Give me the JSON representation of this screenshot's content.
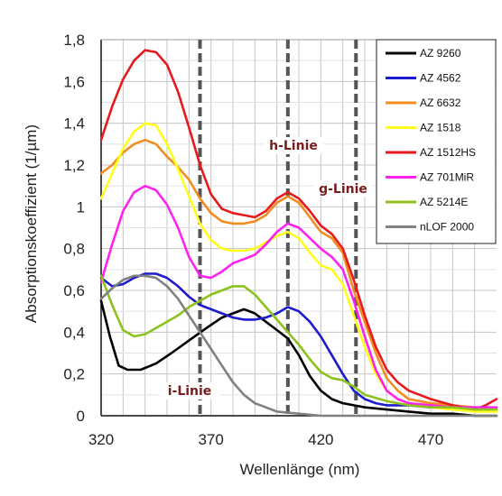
{
  "chart_data": {
    "type": "line",
    "xlabel": "Wellenlänge (nm)",
    "ylabel": "Absorptionskoeffizient (1/µm)",
    "xlim": [
      320,
      500
    ],
    "ylim": [
      0,
      1.8
    ],
    "x_ticks": [
      320,
      370,
      420,
      470
    ],
    "y_ticks": [
      "0",
      "0,2",
      "0,4",
      "0,6",
      "0,8",
      "1",
      "1,2",
      "1,4",
      "1,6",
      "1,8"
    ],
    "grid": true,
    "legend_position": "top-right",
    "series": [
      {
        "name": "AZ 9260",
        "color": "#000000",
        "points": [
          [
            320,
            0.55
          ],
          [
            324,
            0.38
          ],
          [
            328,
            0.24
          ],
          [
            332,
            0.22
          ],
          [
            338,
            0.22
          ],
          [
            345,
            0.25
          ],
          [
            352,
            0.3
          ],
          [
            360,
            0.36
          ],
          [
            368,
            0.42
          ],
          [
            375,
            0.47
          ],
          [
            380,
            0.49
          ],
          [
            385,
            0.51
          ],
          [
            390,
            0.49
          ],
          [
            395,
            0.45
          ],
          [
            400,
            0.41
          ],
          [
            405,
            0.37
          ],
          [
            410,
            0.29
          ],
          [
            415,
            0.19
          ],
          [
            420,
            0.12
          ],
          [
            425,
            0.08
          ],
          [
            430,
            0.06
          ],
          [
            435,
            0.05
          ],
          [
            440,
            0.04
          ],
          [
            450,
            0.03
          ],
          [
            460,
            0.02
          ],
          [
            470,
            0.01
          ],
          [
            480,
            0.01
          ],
          [
            490,
            0.0
          ],
          [
            500,
            0.0
          ]
        ]
      },
      {
        "name": "AZ 4562",
        "color": "#1c1ccc",
        "points": [
          [
            320,
            0.66
          ],
          [
            325,
            0.62
          ],
          [
            330,
            0.63
          ],
          [
            335,
            0.66
          ],
          [
            340,
            0.68
          ],
          [
            345,
            0.68
          ],
          [
            350,
            0.66
          ],
          [
            355,
            0.62
          ],
          [
            360,
            0.57
          ],
          [
            365,
            0.53
          ],
          [
            370,
            0.51
          ],
          [
            375,
            0.49
          ],
          [
            380,
            0.47
          ],
          [
            385,
            0.46
          ],
          [
            390,
            0.46
          ],
          [
            395,
            0.47
          ],
          [
            400,
            0.49
          ],
          [
            405,
            0.52
          ],
          [
            410,
            0.5
          ],
          [
            415,
            0.45
          ],
          [
            420,
            0.38
          ],
          [
            425,
            0.29
          ],
          [
            430,
            0.2
          ],
          [
            435,
            0.12
          ],
          [
            440,
            0.08
          ],
          [
            445,
            0.06
          ],
          [
            450,
            0.05
          ],
          [
            460,
            0.05
          ],
          [
            470,
            0.04
          ],
          [
            480,
            0.04
          ],
          [
            490,
            0.03
          ],
          [
            500,
            0.03
          ]
        ]
      },
      {
        "name": "AZ 6632",
        "color": "#f28c1e",
        "points": [
          [
            320,
            1.16
          ],
          [
            325,
            1.2
          ],
          [
            330,
            1.26
          ],
          [
            335,
            1.3
          ],
          [
            340,
            1.32
          ],
          [
            345,
            1.3
          ],
          [
            350,
            1.24
          ],
          [
            355,
            1.19
          ],
          [
            360,
            1.13
          ],
          [
            365,
            1.04
          ],
          [
            370,
            0.97
          ],
          [
            375,
            0.93
          ],
          [
            380,
            0.92
          ],
          [
            385,
            0.92
          ],
          [
            390,
            0.93
          ],
          [
            395,
            0.96
          ],
          [
            400,
            1.02
          ],
          [
            405,
            1.05
          ],
          [
            410,
            1.02
          ],
          [
            415,
            0.95
          ],
          [
            420,
            0.88
          ],
          [
            425,
            0.85
          ],
          [
            430,
            0.78
          ],
          [
            435,
            0.6
          ],
          [
            440,
            0.45
          ],
          [
            445,
            0.3
          ],
          [
            450,
            0.18
          ],
          [
            455,
            0.12
          ],
          [
            460,
            0.08
          ],
          [
            465,
            0.07
          ],
          [
            470,
            0.06
          ],
          [
            480,
            0.05
          ],
          [
            490,
            0.04
          ],
          [
            500,
            0.03
          ]
        ]
      },
      {
        "name": "AZ 1518",
        "color": "#ffff1a",
        "points": [
          [
            320,
            1.04
          ],
          [
            325,
            1.16
          ],
          [
            330,
            1.28
          ],
          [
            335,
            1.36
          ],
          [
            340,
            1.4
          ],
          [
            345,
            1.39
          ],
          [
            350,
            1.3
          ],
          [
            355,
            1.18
          ],
          [
            360,
            1.05
          ],
          [
            365,
            0.92
          ],
          [
            370,
            0.84
          ],
          [
            375,
            0.8
          ],
          [
            380,
            0.79
          ],
          [
            385,
            0.79
          ],
          [
            390,
            0.8
          ],
          [
            395,
            0.83
          ],
          [
            400,
            0.86
          ],
          [
            405,
            0.88
          ],
          [
            410,
            0.85
          ],
          [
            415,
            0.78
          ],
          [
            420,
            0.72
          ],
          [
            425,
            0.7
          ],
          [
            430,
            0.63
          ],
          [
            435,
            0.48
          ],
          [
            440,
            0.33
          ],
          [
            445,
            0.2
          ],
          [
            450,
            0.12
          ],
          [
            455,
            0.08
          ],
          [
            460,
            0.06
          ],
          [
            470,
            0.04
          ],
          [
            480,
            0.03
          ],
          [
            490,
            0.02
          ],
          [
            500,
            0.02
          ]
        ]
      },
      {
        "name": "AZ 1512HS",
        "color": "#e8191c",
        "points": [
          [
            320,
            1.32
          ],
          [
            325,
            1.48
          ],
          [
            330,
            1.61
          ],
          [
            335,
            1.7
          ],
          [
            340,
            1.75
          ],
          [
            345,
            1.74
          ],
          [
            350,
            1.68
          ],
          [
            355,
            1.55
          ],
          [
            360,
            1.38
          ],
          [
            365,
            1.2
          ],
          [
            370,
            1.06
          ],
          [
            375,
            0.99
          ],
          [
            380,
            0.97
          ],
          [
            385,
            0.96
          ],
          [
            390,
            0.95
          ],
          [
            395,
            0.98
          ],
          [
            400,
            1.04
          ],
          [
            405,
            1.07
          ],
          [
            410,
            1.04
          ],
          [
            415,
            0.98
          ],
          [
            420,
            0.91
          ],
          [
            425,
            0.87
          ],
          [
            430,
            0.8
          ],
          [
            435,
            0.65
          ],
          [
            440,
            0.48
          ],
          [
            445,
            0.33
          ],
          [
            450,
            0.22
          ],
          [
            455,
            0.16
          ],
          [
            460,
            0.12
          ],
          [
            465,
            0.1
          ],
          [
            470,
            0.08
          ],
          [
            480,
            0.05
          ],
          [
            490,
            0.03
          ],
          [
            495,
            0.05
          ],
          [
            500,
            0.08
          ]
        ]
      },
      {
        "name": "AZ 701MiR",
        "color": "#ff22ee",
        "points": [
          [
            320,
            0.64
          ],
          [
            325,
            0.82
          ],
          [
            330,
            0.98
          ],
          [
            335,
            1.07
          ],
          [
            340,
            1.1
          ],
          [
            345,
            1.08
          ],
          [
            350,
            1.01
          ],
          [
            355,
            0.9
          ],
          [
            360,
            0.76
          ],
          [
            365,
            0.67
          ],
          [
            370,
            0.66
          ],
          [
            375,
            0.69
          ],
          [
            380,
            0.73
          ],
          [
            385,
            0.75
          ],
          [
            390,
            0.77
          ],
          [
            395,
            0.82
          ],
          [
            400,
            0.88
          ],
          [
            405,
            0.92
          ],
          [
            410,
            0.9
          ],
          [
            415,
            0.85
          ],
          [
            420,
            0.8
          ],
          [
            425,
            0.76
          ],
          [
            430,
            0.7
          ],
          [
            435,
            0.55
          ],
          [
            440,
            0.38
          ],
          [
            445,
            0.22
          ],
          [
            450,
            0.12
          ],
          [
            455,
            0.08
          ],
          [
            460,
            0.06
          ],
          [
            470,
            0.05
          ],
          [
            480,
            0.04
          ],
          [
            490,
            0.04
          ],
          [
            500,
            0.04
          ]
        ]
      },
      {
        "name": "AZ 5214E",
        "color": "#8cc21c",
        "points": [
          [
            320,
            0.67
          ],
          [
            325,
            0.53
          ],
          [
            330,
            0.41
          ],
          [
            335,
            0.38
          ],
          [
            340,
            0.39
          ],
          [
            345,
            0.42
          ],
          [
            350,
            0.45
          ],
          [
            355,
            0.48
          ],
          [
            360,
            0.52
          ],
          [
            365,
            0.55
          ],
          [
            370,
            0.58
          ],
          [
            375,
            0.6
          ],
          [
            380,
            0.62
          ],
          [
            385,
            0.62
          ],
          [
            390,
            0.58
          ],
          [
            395,
            0.52
          ],
          [
            400,
            0.46
          ],
          [
            405,
            0.4
          ],
          [
            410,
            0.34
          ],
          [
            415,
            0.27
          ],
          [
            420,
            0.21
          ],
          [
            425,
            0.18
          ],
          [
            430,
            0.17
          ],
          [
            435,
            0.14
          ],
          [
            440,
            0.1
          ],
          [
            450,
            0.07
          ],
          [
            460,
            0.05
          ],
          [
            470,
            0.04
          ],
          [
            480,
            0.04
          ],
          [
            490,
            0.03
          ],
          [
            500,
            0.03
          ]
        ]
      },
      {
        "name": "nLOF 2000",
        "color": "#808080",
        "points": [
          [
            320,
            0.56
          ],
          [
            325,
            0.61
          ],
          [
            330,
            0.65
          ],
          [
            335,
            0.67
          ],
          [
            340,
            0.67
          ],
          [
            345,
            0.66
          ],
          [
            350,
            0.62
          ],
          [
            355,
            0.56
          ],
          [
            360,
            0.48
          ],
          [
            365,
            0.4
          ],
          [
            370,
            0.32
          ],
          [
            375,
            0.24
          ],
          [
            380,
            0.16
          ],
          [
            385,
            0.1
          ],
          [
            390,
            0.06
          ],
          [
            395,
            0.04
          ],
          [
            400,
            0.02
          ],
          [
            410,
            0.01
          ],
          [
            420,
            0.0
          ],
          [
            440,
            0.0
          ],
          [
            460,
            0.0
          ],
          [
            480,
            0.0
          ],
          [
            500,
            0.0
          ]
        ]
      }
    ],
    "reference_lines": [
      {
        "x": 365,
        "label": "i-Linie"
      },
      {
        "x": 405,
        "label": "h-Linie"
      },
      {
        "x": 436,
        "label": "g-Linie"
      }
    ]
  }
}
